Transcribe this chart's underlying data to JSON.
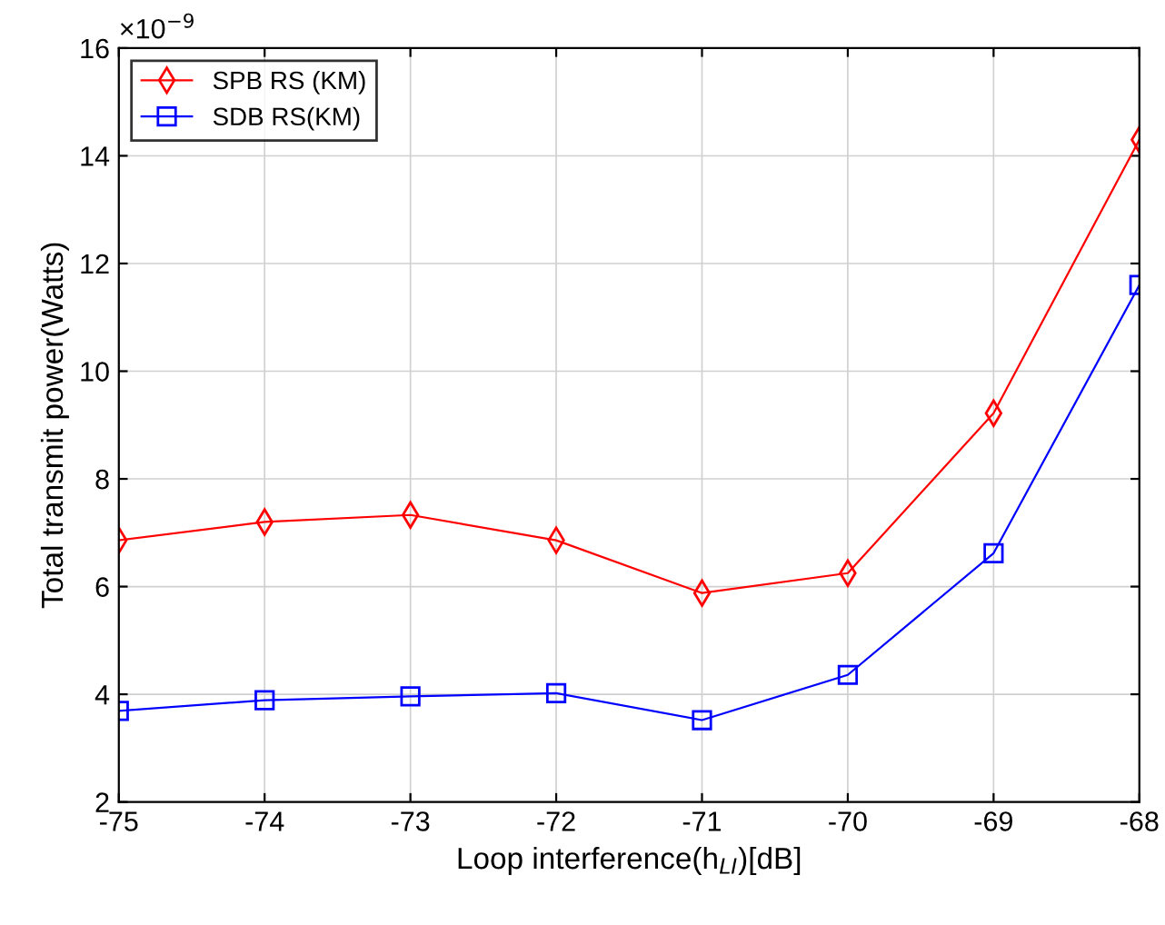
{
  "chart_data": {
    "type": "line",
    "xlabel": "Loop interference(h$_{LI}$)[dB]",
    "ylabel": "Total transmit power(Watts)",
    "x": [
      -75,
      -74,
      -73,
      -72,
      -71,
      -70,
      -69,
      -68
    ],
    "series": [
      {
        "name": "SPB RS (KM)",
        "color": "#ff0000",
        "marker": "diamond",
        "values": [
          6.86,
          7.2,
          7.33,
          6.86,
          5.88,
          6.25,
          9.22,
          14.3
        ]
      },
      {
        "name": "SDB RS(KM)",
        "color": "#0000ff",
        "marker": "square",
        "values": [
          3.69,
          3.89,
          3.96,
          4.02,
          3.52,
          4.36,
          6.62,
          11.6
        ]
      }
    ],
    "xlim": [
      -75,
      -68
    ],
    "xticks": [
      -75,
      -74,
      -73,
      -72,
      -71,
      -70,
      -69,
      -68
    ],
    "ylim": [
      2,
      16
    ],
    "yticks": [
      2,
      4,
      6,
      8,
      10,
      12,
      14,
      16
    ],
    "annotations": [
      "×10$^{−9}$"
    ],
    "grid": true,
    "legend": "top left",
    "line_style": "solid"
  }
}
